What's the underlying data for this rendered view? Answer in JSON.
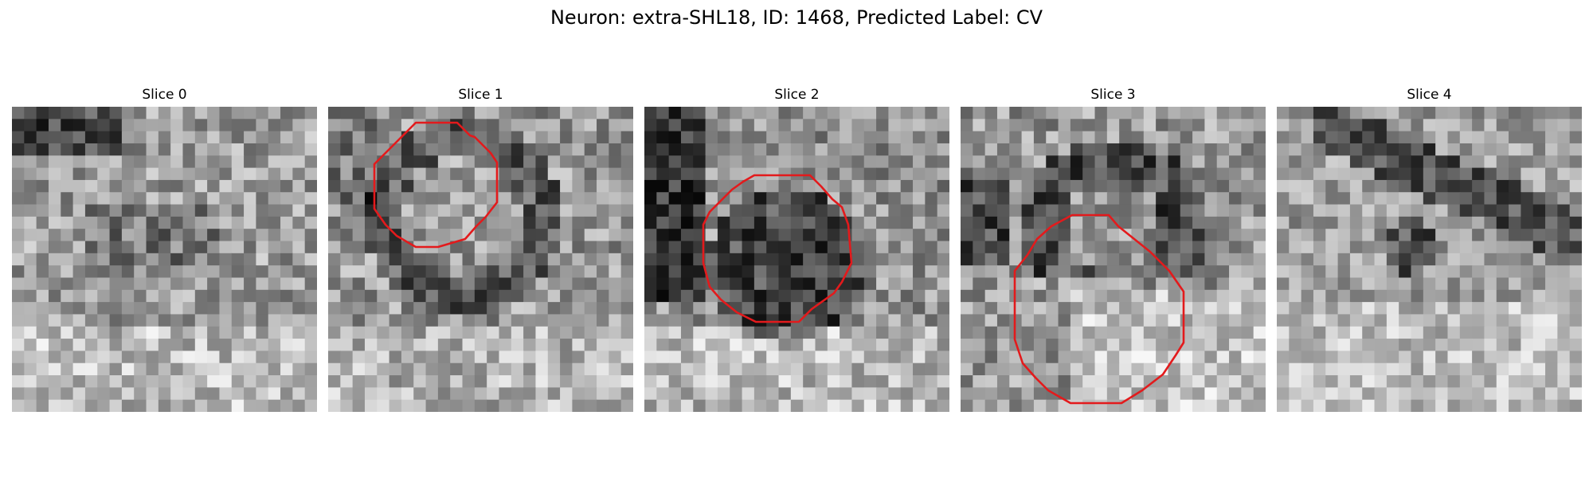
{
  "figure": {
    "title": "Neuron: extra-SHL18, ID: 1468, Predicted Label: CV"
  },
  "colors": {
    "outline": "#e31a1c",
    "background": "#ffffff",
    "colormap": "grayscale"
  },
  "panels": [
    {
      "title": "Slice 0",
      "has_outline": false
    },
    {
      "title": "Slice 1",
      "has_outline": true
    },
    {
      "title": "Slice 2",
      "has_outline": true
    },
    {
      "title": "Slice 3",
      "has_outline": true
    },
    {
      "title": "Slice 4",
      "has_outline": false
    }
  ]
}
